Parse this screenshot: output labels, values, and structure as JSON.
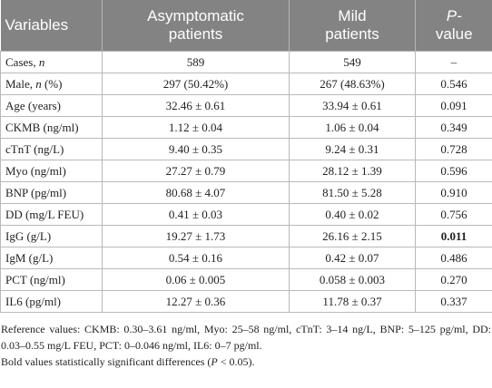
{
  "table": {
    "header": [
      [
        "Variables"
      ],
      [
        "Asymptomatic",
        "patients"
      ],
      [
        "Mild",
        "patients"
      ],
      [
        {
          "italic": "P-"
        },
        "value"
      ]
    ],
    "rows": [
      [
        [
          "Cases, ",
          {
            "italic": "n"
          }
        ],
        "589",
        "549",
        "–"
      ],
      [
        [
          "Male, ",
          {
            "italic": "n"
          },
          " (%)"
        ],
        "297 (50.42%)",
        "267 (48.63%)",
        "0.546"
      ],
      [
        "Age (years)",
        "32.46 ± 0.61",
        "33.94 ± 0.61",
        "0.091"
      ],
      [
        "CKMB (ng/ml)",
        "1.12 ± 0.04",
        "1.06 ± 0.04",
        "0.349"
      ],
      [
        "cTnT (ng/L)",
        "9.40 ± 0.35",
        "9.24 ± 0.31",
        "0.728"
      ],
      [
        "Myo (ng/ml)",
        "27.27 ± 0.79",
        "28.12 ± 1.39",
        "0.596"
      ],
      [
        "BNP (pg/ml)",
        "80.68 ± 4.07",
        "81.50 ± 5.28",
        "0.910"
      ],
      [
        "DD (mg/L FEU)",
        "0.41 ± 0.03",
        "0.40 ± 0.02",
        "0.756"
      ],
      [
        "IgG (g/L)",
        "19.27 ± 1.73",
        "26.16 ± 2.15",
        {
          "bold": "0.011"
        }
      ],
      [
        "IgM (g/L)",
        "0.54 ± 0.16",
        "0.42 ± 0.07",
        "0.486"
      ],
      [
        "PCT (ng/ml)",
        "0.06 ± 0.005",
        "0.058 ± 0.003",
        "0.270"
      ],
      [
        "IL6 (pg/ml)",
        "12.27 ± 0.36",
        "11.78 ± 0.37",
        "0.337"
      ]
    ]
  },
  "footnotes": [
    "Reference values: CKMB: 0.30–3.61 ng/ml, Myo: 25–58 ng/ml, cTnT: 3–14 ng/L, BNP: 5–125 pg/ml, DD: 0.03–0.55 mg/L FEU, PCT: 0–0.046 ng/ml, IL6: 0–7 pg/ml.",
    [
      "Bold values statistically significant differences (",
      {
        "italic": "P"
      },
      " < 0.05)."
    ]
  ]
}
